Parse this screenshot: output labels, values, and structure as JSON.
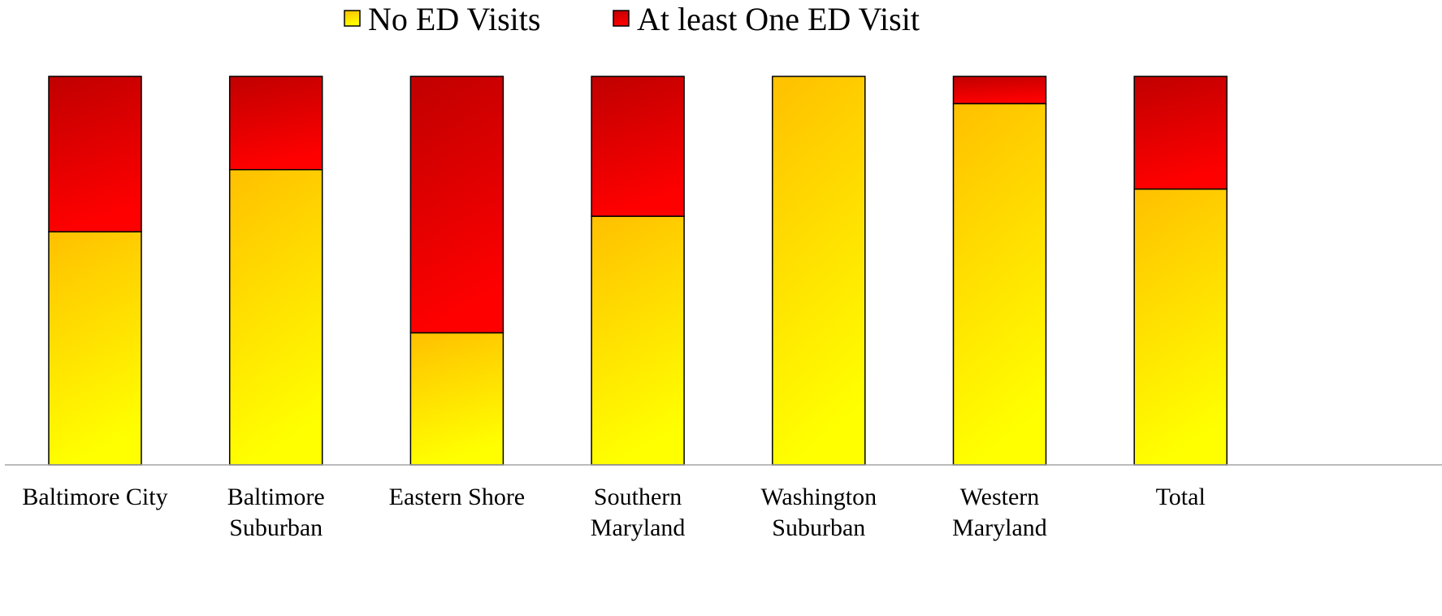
{
  "chart_data": {
    "type": "bar",
    "stacked": true,
    "normalized": true,
    "categories": [
      [
        "Baltimore City"
      ],
      [
        "Baltimore",
        "Suburban"
      ],
      [
        "Eastern Shore"
      ],
      [
        "Southern",
        "Maryland"
      ],
      [
        "Washington",
        "Suburban"
      ],
      [
        "Western",
        "Maryland"
      ],
      [
        "Total"
      ]
    ],
    "series": [
      {
        "name": "No ED Visits",
        "values": [
          60,
          76,
          34,
          64,
          100,
          93,
          71
        ],
        "gradient": [
          "#ffff00",
          "#ffc000"
        ]
      },
      {
        "name": "At least One ED Visit",
        "values": [
          40,
          24,
          66,
          36,
          0,
          7,
          29
        ],
        "gradient": [
          "#ff0000",
          "#c00000"
        ]
      }
    ],
    "ylim": [
      0,
      100
    ],
    "legend_position": "top",
    "grid": false,
    "y_axis_visible": false
  }
}
